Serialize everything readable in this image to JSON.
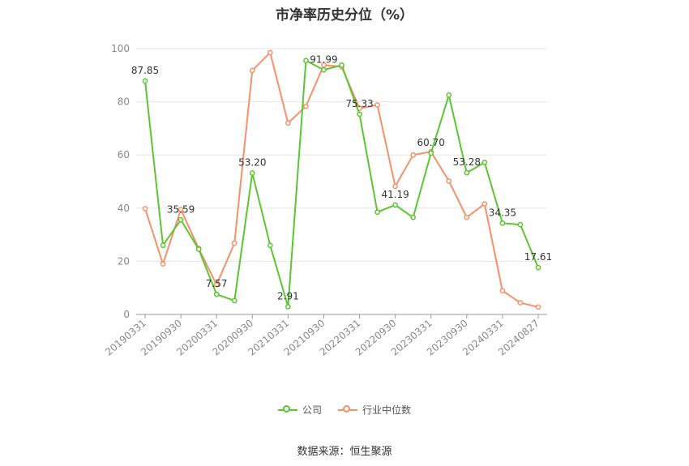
{
  "chart_data": {
    "type": "line",
    "title": "市净率历史分位（%）",
    "xlabel": "",
    "ylabel": "",
    "ylim": [
      0,
      100
    ],
    "yticks": [
      0,
      20,
      40,
      60,
      80,
      100
    ],
    "x_tick_labels": [
      "20190331",
      "20190930",
      "20200331",
      "20200930",
      "20210331",
      "20210930",
      "20220331",
      "20220930",
      "20230331",
      "20230930",
      "20240331",
      "20240827"
    ],
    "grid": true,
    "legend_position": "bottom",
    "point_count": 23,
    "series": [
      {
        "name": "公司",
        "color": "#5bc630",
        "values": [
          87.85,
          26.0,
          35.59,
          24.5,
          7.57,
          5.2,
          53.2,
          26.0,
          2.91,
          95.5,
          91.99,
          93.8,
          75.33,
          38.5,
          41.19,
          36.5,
          60.7,
          82.5,
          53.28,
          57.2,
          34.35,
          33.8,
          17.61
        ],
        "labels": {
          "0": "87.85",
          "2": "35.59",
          "4": "7.57",
          "6": "53.20",
          "8": "2.91",
          "10": "91.99",
          "12": "75.33",
          "14": "41.19",
          "16": "60.70",
          "18": "53.28",
          "20": "34.35",
          "22": "17.61"
        }
      },
      {
        "name": "行业中位数",
        "color": "#f5906a",
        "values": [
          39.8,
          19.0,
          39.5,
          24.8,
          11.2,
          26.8,
          91.8,
          98.5,
          72.0,
          78.3,
          93.8,
          93.2,
          77.5,
          78.8,
          48.2,
          60.0,
          61.2,
          50.2,
          36.5,
          41.6,
          8.9,
          4.4,
          2.8
        ]
      }
    ]
  },
  "legend": [
    {
      "label": "公司",
      "color": "#5bc630"
    },
    {
      "label": "行业中位数",
      "color": "#f5906a"
    }
  ],
  "footer": {
    "source": "数据来源：恒生聚源"
  }
}
